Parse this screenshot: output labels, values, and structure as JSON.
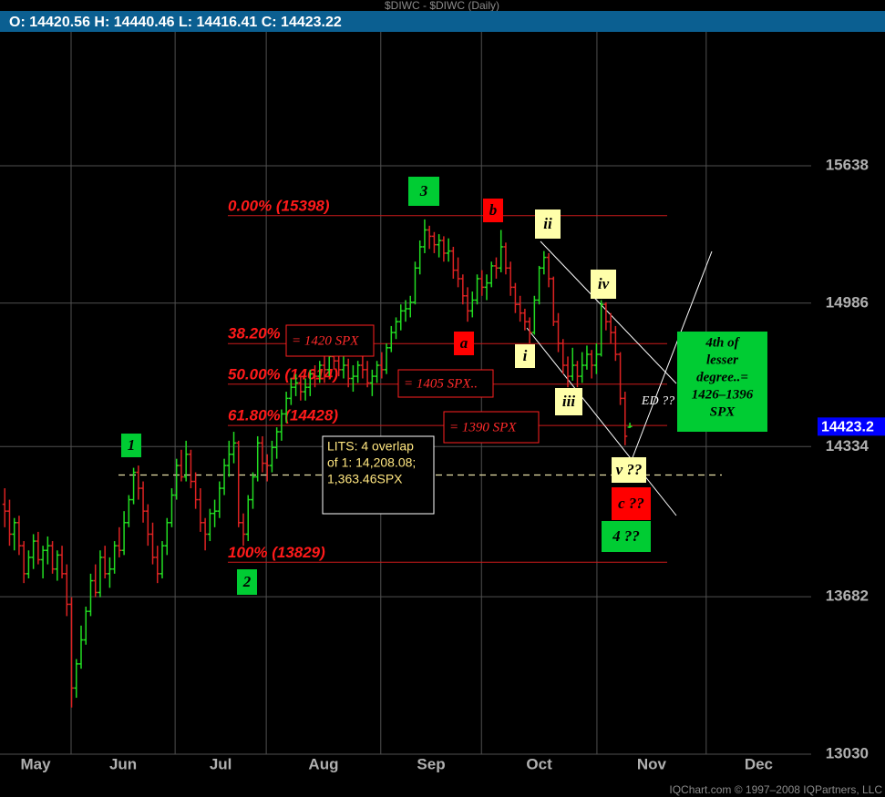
{
  "chart_data": {
    "type": "ohlc",
    "title": "$DIWC - $DIWC (Daily)",
    "ohlc_labels": [
      "O:",
      "H:",
      "L:",
      "C:"
    ],
    "log": true,
    "grid": true,
    "up_color": "#22dd22",
    "down_color": "#dd2222",
    "ylim": [
      13030,
      16301
    ],
    "yticks": [
      13030,
      13682,
      14334,
      14986,
      15638
    ],
    "xlim": [
      -1,
      169
    ],
    "xticks": [
      {
        "value": -7,
        "label": "May"
      },
      {
        "value": 13.9,
        "label": "Jun"
      },
      {
        "value": 35.7,
        "label": "Jul"
      },
      {
        "value": 54.8,
        "label": "Aug"
      },
      {
        "value": 78.8,
        "label": "Sep"
      },
      {
        "value": 99.9,
        "label": "Oct"
      },
      {
        "value": 124.1,
        "label": "Nov"
      },
      {
        "value": 147,
        "label": "Dec"
      }
    ],
    "last_price": {
      "value": 14423.2,
      "label": "14423.2"
    },
    "fib_levels": [
      {
        "label": "0.00% (15398)",
        "value": 15398
      },
      {
        "label": "38.20%",
        "value": 14799
      },
      {
        "label": "50.00% (14614)",
        "value": 14614
      },
      {
        "label": "61.80% (14428)",
        "value": 14428
      },
      {
        "label": "100% (13829)",
        "value": 13829
      }
    ],
    "lits_level": 14208.08,
    "annotations": [
      {
        "text": "1",
        "style": "green"
      },
      {
        "text": "2",
        "style": "green"
      },
      {
        "text": "3",
        "style": "green"
      },
      {
        "text": "4 ??",
        "style": "green"
      },
      {
        "text": "b",
        "style": "red"
      },
      {
        "text": "a",
        "style": "red"
      },
      {
        "text": "c ??",
        "style": "red"
      },
      {
        "text": "ii",
        "style": "yellow"
      },
      {
        "text": "iv",
        "style": "yellow"
      },
      {
        "text": "i",
        "style": "yellow"
      },
      {
        "text": "iii",
        "style": "yellow"
      },
      {
        "text": "v ??",
        "style": "yellow"
      },
      {
        "text": "ED ??",
        "style": "plain"
      },
      {
        "text": "= 1420 SPX",
        "style": "spx"
      },
      {
        "text": "= 1405 SPX..",
        "style": "spx"
      },
      {
        "text": "= 1390 SPX",
        "style": "spx"
      }
    ],
    "notes": [
      {
        "style": "lits",
        "lines": [
          "LITS: 4 overlap",
          "of 1: 14,208.08;",
          "1,363.46SPX"
        ]
      },
      {
        "style": "green",
        "lines": [
          "4th of",
          "lesser",
          "degree..=",
          "1426–1396",
          "SPX"
        ]
      }
    ],
    "footer": "IQChart.com © 1997–2008 IQPartners, LLC",
    "ohlc": [
      [
        14080,
        14150,
        13980,
        14050
      ],
      [
        14050,
        14100,
        13900,
        13950
      ],
      [
        13950,
        14020,
        13880,
        14000
      ],
      [
        14000,
        14030,
        13860,
        13900
      ],
      [
        13900,
        13920,
        13740,
        13780
      ],
      [
        13780,
        13880,
        13760,
        13850
      ],
      [
        13850,
        13950,
        13800,
        13920
      ],
      [
        13920,
        13960,
        13820,
        13840
      ],
      [
        13840,
        13900,
        13760,
        13880
      ],
      [
        13880,
        13940,
        13820,
        13900
      ],
      [
        13900,
        13920,
        13780,
        13800
      ],
      [
        13800,
        13880,
        13750,
        13860
      ],
      [
        13860,
        13900,
        13760,
        13780
      ],
      [
        13780,
        13820,
        13600,
        13650
      ],
      [
        13650,
        13680,
        13220,
        13300
      ],
      [
        13300,
        13420,
        13260,
        13400
      ],
      [
        13400,
        13560,
        13380,
        13500
      ],
      [
        13500,
        13640,
        13480,
        13620
      ],
      [
        13620,
        13780,
        13600,
        13750
      ],
      [
        13750,
        13820,
        13680,
        13700
      ],
      [
        13700,
        13880,
        13680,
        13850
      ],
      [
        13850,
        13900,
        13760,
        13780
      ],
      [
        13780,
        13850,
        13720,
        13800
      ],
      [
        13800,
        13920,
        13780,
        13900
      ],
      [
        13900,
        13980,
        13850,
        13880
      ],
      [
        13880,
        14050,
        13860,
        14000
      ],
      [
        14000,
        14120,
        13980,
        14100
      ],
      [
        14100,
        14240,
        14080,
        14220
      ],
      [
        14220,
        14250,
        14100,
        14150
      ],
      [
        14150,
        14180,
        14000,
        14050
      ],
      [
        14050,
        14080,
        13900,
        13950
      ],
      [
        13950,
        14000,
        13820,
        13850
      ],
      [
        13850,
        13900,
        13740,
        13780
      ],
      [
        13780,
        13920,
        13760,
        13900
      ],
      [
        13900,
        14020,
        13860,
        14000
      ],
      [
        14000,
        14150,
        13980,
        14120
      ],
      [
        14120,
        14280,
        14100,
        14250
      ],
      [
        14250,
        14320,
        14180,
        14200
      ],
      [
        14200,
        14360,
        14180,
        14300
      ],
      [
        14300,
        14320,
        14150,
        14180
      ],
      [
        14180,
        14220,
        14060,
        14100
      ],
      [
        14100,
        14150,
        13960,
        14000
      ],
      [
        14000,
        14020,
        13880,
        13950
      ],
      [
        13950,
        14060,
        13920,
        14040
      ],
      [
        14040,
        14100,
        13980,
        14050
      ],
      [
        14050,
        14180,
        14020,
        14150
      ],
      [
        14150,
        14280,
        14120,
        14250
      ],
      [
        14250,
        14360,
        14200,
        14300
      ],
      [
        14300,
        14400,
        14260,
        14350
      ],
      [
        14350,
        14360,
        13980,
        14000
      ],
      [
        14000,
        14040,
        13900,
        13950
      ],
      [
        13950,
        14120,
        13920,
        14100
      ],
      [
        14100,
        14220,
        14060,
        14200
      ],
      [
        14200,
        14380,
        14180,
        14350
      ],
      [
        14350,
        14380,
        14220,
        14260
      ],
      [
        14260,
        14300,
        14180,
        14250
      ],
      [
        14250,
        14360,
        14220,
        14330
      ],
      [
        14330,
        14420,
        14280,
        14400
      ],
      [
        14400,
        14500,
        14360,
        14480
      ],
      [
        14480,
        14580,
        14440,
        14550
      ],
      [
        14550,
        14640,
        14520,
        14600
      ],
      [
        14600,
        14660,
        14560,
        14620
      ],
      [
        14620,
        14650,
        14540,
        14580
      ],
      [
        14580,
        14640,
        14540,
        14600
      ],
      [
        14600,
        14680,
        14560,
        14660
      ],
      [
        14660,
        14700,
        14600,
        14650
      ],
      [
        14650,
        14720,
        14620,
        14700
      ],
      [
        14700,
        14740,
        14620,
        14680
      ],
      [
        14680,
        14760,
        14650,
        14740
      ],
      [
        14740,
        14780,
        14680,
        14720
      ],
      [
        14720,
        14760,
        14650,
        14680
      ],
      [
        14680,
        14740,
        14640,
        14700
      ],
      [
        14700,
        14730,
        14600,
        14640
      ],
      [
        14640,
        14700,
        14580,
        14650
      ],
      [
        14650,
        14720,
        14620,
        14700
      ],
      [
        14700,
        14740,
        14640,
        14680
      ],
      [
        14680,
        14720,
        14600,
        14620
      ],
      [
        14620,
        14680,
        14560,
        14650
      ],
      [
        14650,
        14720,
        14620,
        14700
      ],
      [
        14700,
        14760,
        14640,
        14680
      ],
      [
        14680,
        14800,
        14660,
        14780
      ],
      [
        14780,
        14880,
        14760,
        14850
      ],
      [
        14850,
        14920,
        14820,
        14900
      ],
      [
        14900,
        14980,
        14860,
        14950
      ],
      [
        14950,
        15000,
        14900,
        14960
      ],
      [
        14960,
        15020,
        14920,
        14990
      ],
      [
        14990,
        15180,
        14980,
        15150
      ],
      [
        15150,
        15280,
        15120,
        15250
      ],
      [
        15250,
        15380,
        15220,
        15330
      ],
      [
        15330,
        15350,
        15240,
        15300
      ],
      [
        15300,
        15320,
        15220,
        15260
      ],
      [
        15260,
        15310,
        15200,
        15280
      ],
      [
        15280,
        15300,
        15180,
        15220
      ],
      [
        15220,
        15290,
        15180,
        15230
      ],
      [
        15230,
        15250,
        15100,
        15140
      ],
      [
        15140,
        15200,
        15060,
        15100
      ],
      [
        15100,
        15120,
        14980,
        15020
      ],
      [
        15020,
        15060,
        14900,
        14950
      ],
      [
        14950,
        15040,
        14920,
        15000
      ],
      [
        15000,
        15120,
        14980,
        15100
      ],
      [
        15100,
        15140,
        15020,
        15060
      ],
      [
        15060,
        15120,
        15000,
        15080
      ],
      [
        15080,
        15180,
        15060,
        15160
      ],
      [
        15160,
        15200,
        15100,
        15150
      ],
      [
        15150,
        15330,
        15130,
        15250
      ],
      [
        15250,
        15270,
        15120,
        15150
      ],
      [
        15150,
        15180,
        15020,
        15060
      ],
      [
        15060,
        15080,
        14940,
        14980
      ],
      [
        14980,
        15020,
        14900,
        14940
      ],
      [
        14940,
        14960,
        14860,
        14900
      ],
      [
        14900,
        14920,
        14800,
        14850
      ],
      [
        14850,
        15020,
        14840,
        15000
      ],
      [
        15000,
        15160,
        14980,
        15150
      ],
      [
        15150,
        15230,
        15120,
        15200
      ],
      [
        15200,
        15220,
        15060,
        15100
      ],
      [
        15100,
        15110,
        14880,
        14900
      ],
      [
        14900,
        14940,
        14760,
        14800
      ],
      [
        14800,
        14820,
        14660,
        14700
      ],
      [
        14700,
        14740,
        14600,
        14650
      ],
      [
        14650,
        14780,
        14630,
        14700
      ],
      [
        14700,
        14720,
        14600,
        14650
      ],
      [
        14650,
        14760,
        14620,
        14700
      ],
      [
        14700,
        14790,
        14680,
        14750
      ],
      [
        14750,
        14770,
        14640,
        14700
      ],
      [
        14700,
        14800,
        14660,
        14750
      ],
      [
        14750,
        15000,
        14740,
        14980
      ],
      [
        14980,
        14990,
        14860,
        14900
      ],
      [
        14900,
        14940,
        14800,
        14850
      ],
      [
        14850,
        14880,
        14720,
        14750
      ],
      [
        14750,
        14760,
        14520,
        14550
      ],
      [
        14550,
        14580,
        14340,
        14380
      ],
      [
        14420.56,
        14440.46,
        14416.41,
        14423.22
      ]
    ]
  }
}
